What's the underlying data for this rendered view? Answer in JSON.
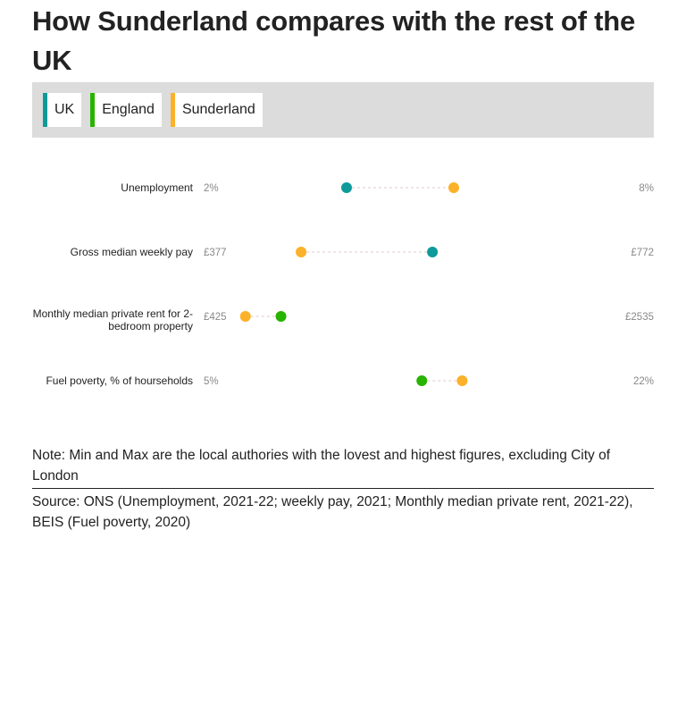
{
  "title": "How Sunderland compares with the rest of the UK",
  "legend": [
    {
      "label": "UK",
      "color": "#0f9a9a"
    },
    {
      "label": "England",
      "color": "#27b300"
    },
    {
      "label": "Sunderland",
      "color": "#fbb129"
    }
  ],
  "chart_data": {
    "type": "dot-range",
    "series": [
      "UK",
      "England",
      "Sunderland"
    ],
    "rows": [
      {
        "label": "Unemployment",
        "min_label": "2%",
        "max_label": "8%",
        "min": 2,
        "max": 8,
        "values": {
          "UK": 3.7,
          "Sunderland": 5.2
        }
      },
      {
        "label": "Gross median weekly pay",
        "min_label": "£377",
        "max_label": "£772",
        "min": 377,
        "max": 772,
        "values": {
          "UK": 568,
          "Sunderland": 447
        }
      },
      {
        "label": "Monthly median private rent for 2-bedroom property",
        "min_label": "£425",
        "max_label": "£2535",
        "min": 425,
        "max": 2535,
        "values": {
          "England": 700,
          "Sunderland": 525
        }
      },
      {
        "label": "Fuel poverty, % of hourseholds",
        "min_label": "5%",
        "max_label": "22%",
        "min": 5,
        "max": 22,
        "values": {
          "England": 12.8,
          "Sunderland": 14.4
        }
      }
    ]
  },
  "note": "Note: Min and Max are the local authories with the lovest and highest figures, excluding City of London",
  "source": "Source: ONS (Unemployment, 2021-22; weekly pay, 2021; Monthly median private rent, 2021-22), BEIS (Fuel poverty, 2020)"
}
